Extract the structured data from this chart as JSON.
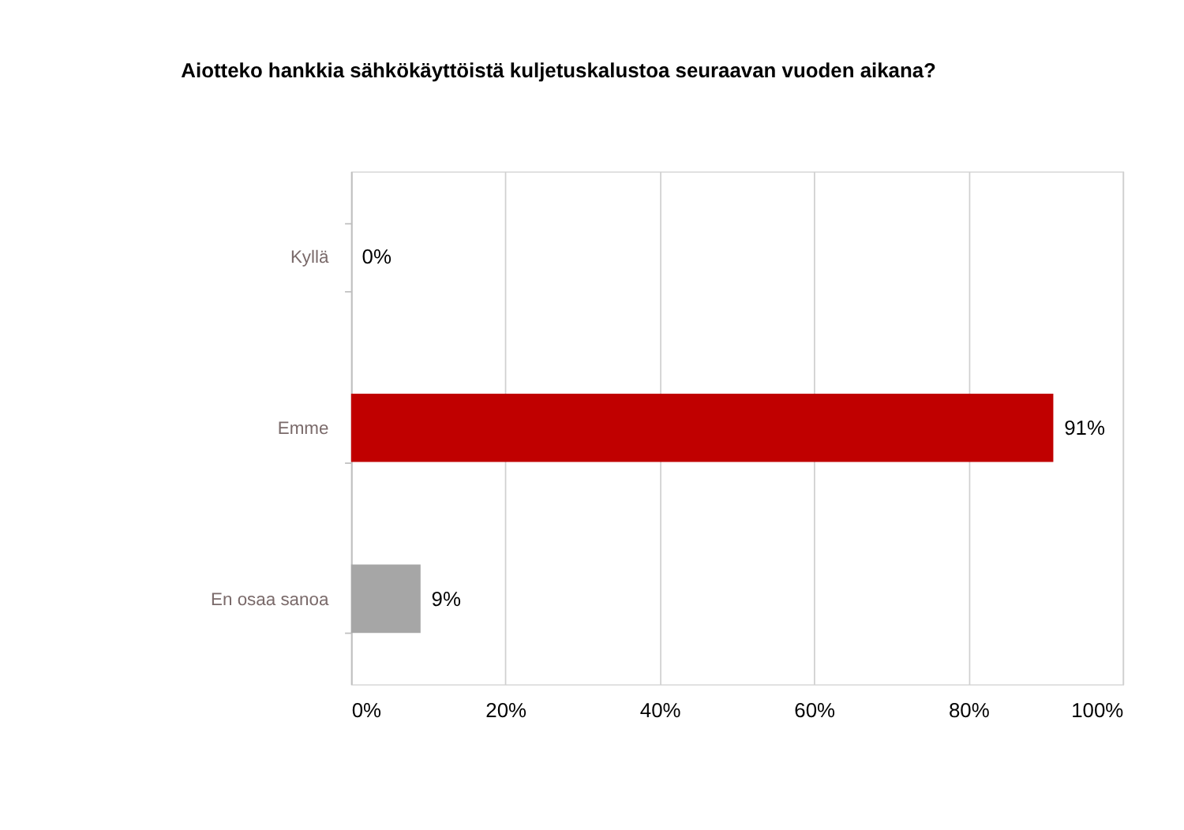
{
  "chart_data": {
    "type": "bar",
    "orientation": "horizontal",
    "title": "Aiotteko hankkia sähkökäyttöistä kuljetuskalustoa seuraavan vuoden aikana?",
    "categories": [
      "Kyllä",
      "Emme",
      "En osaa sanoa"
    ],
    "values": [
      0,
      91,
      9
    ],
    "colors": [
      "#c00000",
      "#c00000",
      "#a6a6a6"
    ],
    "value_labels": [
      "0%",
      "91%",
      "9%"
    ],
    "xlim": [
      0,
      100
    ],
    "xticks": [
      {
        "value": 0,
        "label": "0%"
      },
      {
        "value": 20,
        "label": "20%"
      },
      {
        "value": 40,
        "label": "40%"
      },
      {
        "value": 60,
        "label": "60%"
      },
      {
        "value": 80,
        "label": "80%"
      },
      {
        "value": 100,
        "label": "100%"
      }
    ],
    "grid": "x"
  }
}
